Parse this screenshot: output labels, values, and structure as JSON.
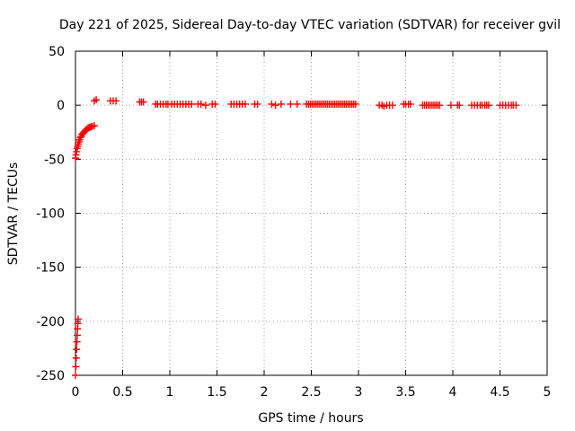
{
  "chart_data": {
    "type": "scatter",
    "title": "Day 221 of 2025, Sidereal Day-to-day VTEC variation (SDTVAR) for receiver gvil",
    "xlabel": "GPS time / hours",
    "ylabel": "SDTVAR / TECUs",
    "xlim": [
      0,
      5
    ],
    "ylim": [
      -250,
      50
    ],
    "grid": true,
    "marker": "plus",
    "color": "#ff0000",
    "xticks": [
      0,
      0.5,
      1,
      1.5,
      2,
      2.5,
      3,
      3.5,
      4,
      4.5,
      5
    ],
    "xtick_labels": [
      "0",
      "0.5",
      "1",
      "1.5",
      "2",
      "2.5",
      "3",
      "3.5",
      "4",
      "4.5",
      "5"
    ],
    "yticks": [
      50,
      0,
      -50,
      -100,
      -150,
      -200,
      -250
    ],
    "ytick_labels": [
      "50",
      "0",
      "-50",
      "-100",
      "-150",
      "-200",
      "-250"
    ],
    "series": [
      {
        "points": [
          [
            0.0,
            -250
          ],
          [
            0.004,
            -242
          ],
          [
            0.008,
            -234
          ],
          [
            0.012,
            -226
          ],
          [
            0.016,
            -219
          ],
          [
            0.019,
            -213
          ],
          [
            0.022,
            -207
          ],
          [
            0.025,
            -202
          ],
          [
            0.028,
            -198
          ],
          [
            0.0,
            -49
          ],
          [
            0.006,
            -46
          ],
          [
            0.012,
            -43
          ],
          [
            0.018,
            -40
          ],
          [
            0.024,
            -38
          ],
          [
            0.03,
            -36
          ],
          [
            0.037,
            -34
          ],
          [
            0.044,
            -32
          ],
          [
            0.052,
            -30
          ],
          [
            0.06,
            -29
          ],
          [
            0.07,
            -27
          ],
          [
            0.08,
            -26
          ],
          [
            0.09,
            -25
          ],
          [
            0.1,
            -24
          ],
          [
            0.11,
            -23
          ],
          [
            0.12,
            -22
          ],
          [
            0.135,
            -21
          ],
          [
            0.15,
            -20.5
          ],
          [
            0.165,
            -20
          ],
          [
            0.18,
            -19.5
          ],
          [
            0.2,
            -19
          ],
          [
            0.2,
            4
          ],
          [
            0.22,
            5
          ],
          [
            0.37,
            4
          ],
          [
            0.4,
            4
          ],
          [
            0.43,
            4
          ],
          [
            0.68,
            3
          ],
          [
            0.7,
            3
          ],
          [
            0.72,
            3
          ],
          [
            0.85,
            1
          ],
          [
            0.87,
            1
          ],
          [
            0.9,
            1
          ],
          [
            0.93,
            1
          ],
          [
            0.96,
            1
          ],
          [
            0.98,
            1
          ],
          [
            1.02,
            1
          ],
          [
            1.05,
            1
          ],
          [
            1.08,
            1
          ],
          [
            1.11,
            1
          ],
          [
            1.14,
            1
          ],
          [
            1.17,
            1
          ],
          [
            1.2,
            1
          ],
          [
            1.23,
            1
          ],
          [
            1.3,
            1
          ],
          [
            1.33,
            1
          ],
          [
            1.38,
            0
          ],
          [
            1.45,
            1
          ],
          [
            1.48,
            1
          ],
          [
            1.65,
            1
          ],
          [
            1.68,
            1
          ],
          [
            1.71,
            1
          ],
          [
            1.74,
            1
          ],
          [
            1.77,
            1
          ],
          [
            1.8,
            1
          ],
          [
            1.9,
            1
          ],
          [
            1.93,
            1
          ],
          [
            2.08,
            1
          ],
          [
            2.12,
            0
          ],
          [
            2.18,
            1
          ],
          [
            2.28,
            1
          ],
          [
            2.35,
            1
          ],
          [
            2.45,
            1
          ],
          [
            2.47,
            1
          ],
          [
            2.49,
            1
          ],
          [
            2.51,
            1
          ],
          [
            2.53,
            1
          ],
          [
            2.55,
            1
          ],
          [
            2.57,
            1
          ],
          [
            2.59,
            1
          ],
          [
            2.61,
            1
          ],
          [
            2.63,
            1
          ],
          [
            2.65,
            1
          ],
          [
            2.67,
            1
          ],
          [
            2.69,
            1
          ],
          [
            2.71,
            1
          ],
          [
            2.73,
            1
          ],
          [
            2.75,
            1
          ],
          [
            2.77,
            1
          ],
          [
            2.79,
            1
          ],
          [
            2.81,
            1
          ],
          [
            2.83,
            1
          ],
          [
            2.85,
            1
          ],
          [
            2.87,
            1
          ],
          [
            2.89,
            1
          ],
          [
            2.91,
            1
          ],
          [
            2.93,
            1
          ],
          [
            2.95,
            1
          ],
          [
            2.97,
            1
          ],
          [
            3.22,
            0
          ],
          [
            3.25,
            0
          ],
          [
            3.27,
            -1
          ],
          [
            3.3,
            0
          ],
          [
            3.33,
            0
          ],
          [
            3.36,
            0
          ],
          [
            3.48,
            1
          ],
          [
            3.5,
            1
          ],
          [
            3.53,
            1
          ],
          [
            3.55,
            1
          ],
          [
            3.68,
            0
          ],
          [
            3.7,
            0
          ],
          [
            3.72,
            0
          ],
          [
            3.74,
            0
          ],
          [
            3.76,
            0
          ],
          [
            3.78,
            0
          ],
          [
            3.8,
            0
          ],
          [
            3.82,
            0
          ],
          [
            3.84,
            0
          ],
          [
            3.86,
            0
          ],
          [
            3.98,
            0
          ],
          [
            4.05,
            0
          ],
          [
            4.07,
            0
          ],
          [
            4.2,
            0
          ],
          [
            4.23,
            0
          ],
          [
            4.26,
            0
          ],
          [
            4.29,
            0
          ],
          [
            4.31,
            0
          ],
          [
            4.34,
            0
          ],
          [
            4.36,
            0
          ],
          [
            4.38,
            0
          ],
          [
            4.5,
            0
          ],
          [
            4.53,
            0
          ],
          [
            4.56,
            0
          ],
          [
            4.59,
            0
          ],
          [
            4.62,
            0
          ],
          [
            4.64,
            0
          ],
          [
            4.67,
            0
          ]
        ]
      }
    ]
  }
}
